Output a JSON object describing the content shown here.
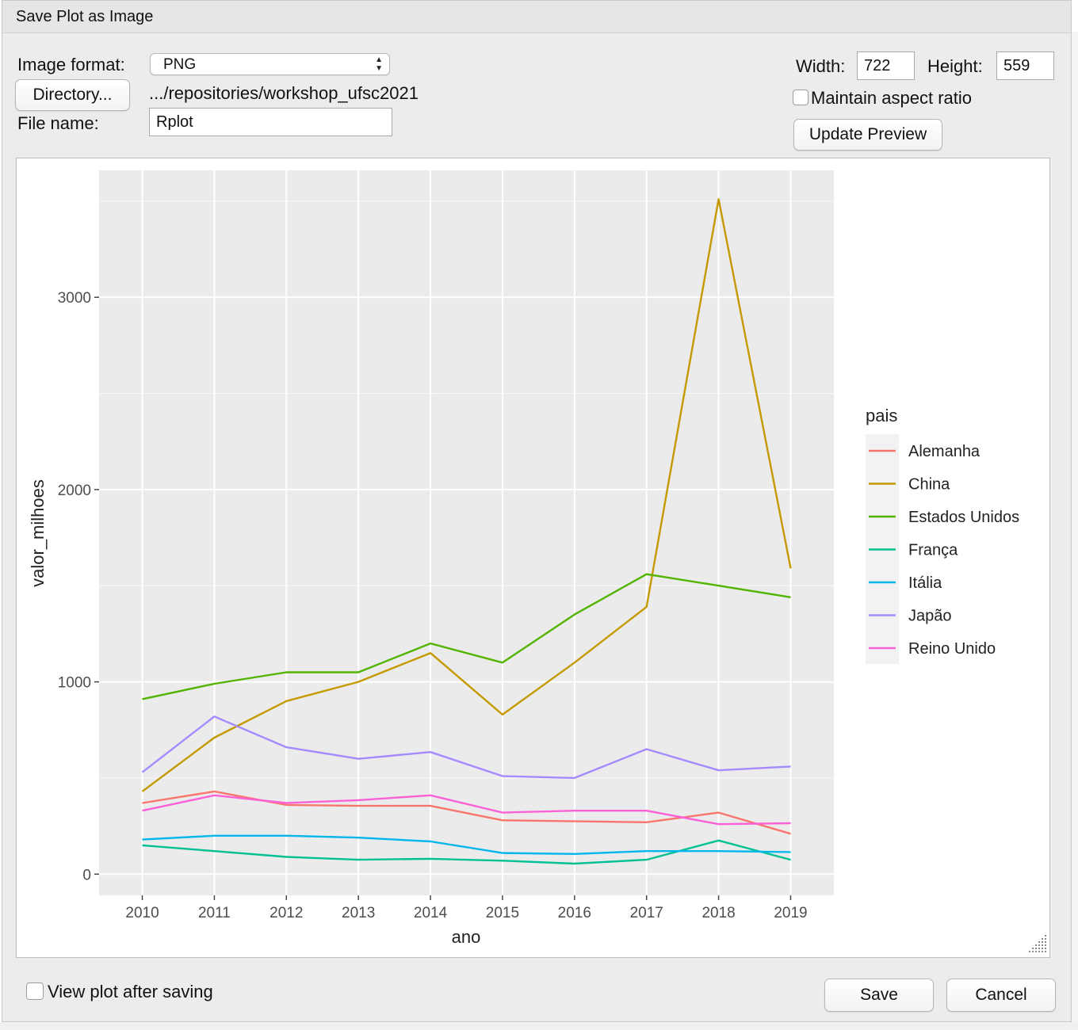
{
  "window": {
    "title": "Save Plot as Image"
  },
  "form": {
    "image_format_label": "Image format:",
    "image_format_value": "PNG",
    "directory_button": "Directory...",
    "directory_path": ".../repositories/workshop_ufsc2021",
    "file_name_label": "File name:",
    "file_name_value": "Rplot",
    "width_label": "Width:",
    "width_value": "722",
    "height_label": "Height:",
    "height_value": "559",
    "maintain_aspect_label": "Maintain aspect ratio",
    "maintain_aspect_checked": false,
    "update_preview_button": "Update Preview"
  },
  "footer": {
    "view_after_label": "View plot after saving",
    "view_after_checked": false,
    "save_button": "Save",
    "cancel_button": "Cancel"
  },
  "chart_data": {
    "type": "line",
    "xlabel": "ano",
    "ylabel": "valor_milhoes",
    "x": [
      2010,
      2011,
      2012,
      2013,
      2014,
      2015,
      2016,
      2017,
      2018,
      2019
    ],
    "xlim": [
      2009.4,
      2019.6
    ],
    "ylim": [
      -110,
      3660
    ],
    "yticks": [
      0,
      1000,
      2000,
      3000
    ],
    "legend_title": "pais",
    "legend_position": "right",
    "grid": true,
    "series": [
      {
        "name": "Alemanha",
        "color": "#F8766D",
        "values": [
          370,
          430,
          360,
          355,
          355,
          280,
          275,
          270,
          320,
          210
        ]
      },
      {
        "name": "China",
        "color": "#C49A00",
        "values": [
          430,
          710,
          900,
          1000,
          1150,
          830,
          1100,
          1390,
          3510,
          1590
        ]
      },
      {
        "name": "Estados Unidos",
        "color": "#53B400",
        "values": [
          910,
          990,
          1050,
          1050,
          1200,
          1100,
          1350,
          1560,
          1500,
          1440
        ]
      },
      {
        "name": "França",
        "color": "#00C094",
        "values": [
          150,
          120,
          90,
          75,
          80,
          70,
          55,
          75,
          175,
          75
        ]
      },
      {
        "name": "Itália",
        "color": "#00B6EB",
        "values": [
          180,
          200,
          200,
          190,
          170,
          110,
          105,
          120,
          120,
          115
        ]
      },
      {
        "name": "Japão",
        "color": "#A58AFF",
        "values": [
          530,
          820,
          660,
          600,
          635,
          510,
          500,
          650,
          540,
          560
        ]
      },
      {
        "name": "Reino Unido",
        "color": "#FB61D7",
        "values": [
          330,
          410,
          370,
          385,
          410,
          320,
          330,
          330,
          260,
          265
        ]
      }
    ]
  }
}
